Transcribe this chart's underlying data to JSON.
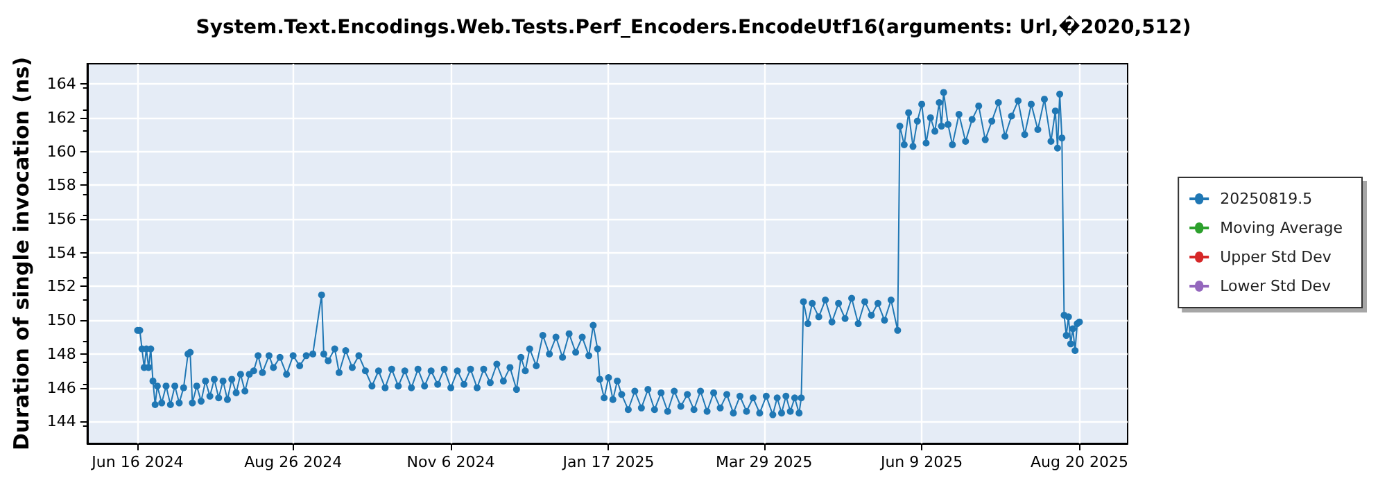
{
  "chart_data": {
    "type": "line",
    "title": "System.Text.Encodings.Web.Tests.Perf_Encoders.EncodeUtf16(arguments: Url,�2020,512)",
    "ylabel": "Duration of single invocation (ns)",
    "x": [
      "2024-06-16",
      "2024-06-17",
      "2024-06-18",
      "2024-06-19",
      "2024-06-20",
      "2024-06-21",
      "2024-06-22",
      "2024-06-23",
      "2024-06-24",
      "2024-06-25",
      "2024-06-27",
      "2024-06-29",
      "2024-07-01",
      "2024-07-03",
      "2024-07-05",
      "2024-07-07",
      "2024-07-09",
      "2024-07-10",
      "2024-07-11",
      "2024-07-13",
      "2024-07-15",
      "2024-07-17",
      "2024-07-19",
      "2024-07-21",
      "2024-07-23",
      "2024-07-25",
      "2024-07-27",
      "2024-07-29",
      "2024-07-31",
      "2024-08-02",
      "2024-08-04",
      "2024-08-06",
      "2024-08-08",
      "2024-08-10",
      "2024-08-12",
      "2024-08-15",
      "2024-08-17",
      "2024-08-20",
      "2024-08-23",
      "2024-08-26",
      "2024-08-29",
      "2024-09-01",
      "2024-09-04",
      "2024-09-08",
      "2024-09-09",
      "2024-09-11",
      "2024-09-14",
      "2024-09-16",
      "2024-09-19",
      "2024-09-22",
      "2024-09-25",
      "2024-09-28",
      "2024-10-01",
      "2024-10-04",
      "2024-10-07",
      "2024-10-10",
      "2024-10-13",
      "2024-10-16",
      "2024-10-19",
      "2024-10-22",
      "2024-10-25",
      "2024-10-28",
      "2024-10-31",
      "2024-11-03",
      "2024-11-06",
      "2024-11-09",
      "2024-11-12",
      "2024-11-15",
      "2024-11-18",
      "2024-11-21",
      "2024-11-24",
      "2024-11-27",
      "2024-11-30",
      "2024-12-03",
      "2024-12-06",
      "2024-12-08",
      "2024-12-10",
      "2024-12-12",
      "2024-12-15",
      "2024-12-18",
      "2024-12-21",
      "2024-12-24",
      "2024-12-27",
      "2024-12-30",
      "2025-01-02",
      "2025-01-05",
      "2025-01-08",
      "2025-01-10",
      "2025-01-12",
      "2025-01-13",
      "2025-01-15",
      "2025-01-17",
      "2025-01-19",
      "2025-01-21",
      "2025-01-23",
      "2025-01-26",
      "2025-01-29",
      "2025-02-01",
      "2025-02-04",
      "2025-02-07",
      "2025-02-10",
      "2025-02-13",
      "2025-02-16",
      "2025-02-19",
      "2025-02-22",
      "2025-02-25",
      "2025-02-28",
      "2025-03-03",
      "2025-03-06",
      "2025-03-09",
      "2025-03-12",
      "2025-03-15",
      "2025-03-18",
      "2025-03-21",
      "2025-03-24",
      "2025-03-27",
      "2025-03-30",
      "2025-04-02",
      "2025-04-04",
      "2025-04-06",
      "2025-04-08",
      "2025-04-10",
      "2025-04-12",
      "2025-04-14",
      "2025-04-15",
      "2025-04-16",
      "2025-04-18",
      "2025-04-20",
      "2025-04-23",
      "2025-04-26",
      "2025-04-29",
      "2025-05-02",
      "2025-05-05",
      "2025-05-08",
      "2025-05-11",
      "2025-05-14",
      "2025-05-17",
      "2025-05-20",
      "2025-05-23",
      "2025-05-26",
      "2025-05-29",
      "2025-05-30",
      "2025-06-01",
      "2025-06-03",
      "2025-06-05",
      "2025-06-07",
      "2025-06-09",
      "2025-06-11",
      "2025-06-13",
      "2025-06-15",
      "2025-06-17",
      "2025-06-18",
      "2025-06-19",
      "2025-06-21",
      "2025-06-23",
      "2025-06-26",
      "2025-06-29",
      "2025-07-02",
      "2025-07-05",
      "2025-07-08",
      "2025-07-11",
      "2025-07-14",
      "2025-07-17",
      "2025-07-20",
      "2025-07-23",
      "2025-07-26",
      "2025-07-29",
      "2025-08-01",
      "2025-08-04",
      "2025-08-07",
      "2025-08-09",
      "2025-08-10",
      "2025-08-11",
      "2025-08-12",
      "2025-08-13",
      "2025-08-14",
      "2025-08-15",
      "2025-08-16",
      "2025-08-17",
      "2025-08-18",
      "2025-08-19",
      "2025-08-20"
    ],
    "series": [
      {
        "name": "20250819.5",
        "color": "#1f77b4",
        "values": [
          149.4,
          149.4,
          148.3,
          147.2,
          148.3,
          147.2,
          148.3,
          146.4,
          145.0,
          146.1,
          145.1,
          146.1,
          145.0,
          146.1,
          145.1,
          146.0,
          148.0,
          148.1,
          145.1,
          146.1,
          145.2,
          146.4,
          145.5,
          146.5,
          145.4,
          146.4,
          145.3,
          146.5,
          145.7,
          146.8,
          145.8,
          146.8,
          147.0,
          147.9,
          146.9,
          147.9,
          147.2,
          147.8,
          146.8,
          147.9,
          147.3,
          147.9,
          148.0,
          151.5,
          148.0,
          147.6,
          148.3,
          146.9,
          148.2,
          147.2,
          147.9,
          147.0,
          146.1,
          147.0,
          146.0,
          147.1,
          146.1,
          147.0,
          146.0,
          147.1,
          146.1,
          147.0,
          146.2,
          147.1,
          146.0,
          147.0,
          146.2,
          147.1,
          146.0,
          147.1,
          146.3,
          147.4,
          146.4,
          147.2,
          145.9,
          147.8,
          147.0,
          148.3,
          147.3,
          149.1,
          148.0,
          149.0,
          147.8,
          149.2,
          148.1,
          149.0,
          147.9,
          149.7,
          148.3,
          146.5,
          145.4,
          146.6,
          145.3,
          146.4,
          145.6,
          144.7,
          145.8,
          144.8,
          145.9,
          144.7,
          145.7,
          144.6,
          145.8,
          144.9,
          145.6,
          144.7,
          145.8,
          144.6,
          145.7,
          144.8,
          145.6,
          144.5,
          145.5,
          144.6,
          145.4,
          144.5,
          145.5,
          144.4,
          145.4,
          144.5,
          145.5,
          144.6,
          145.4,
          144.5,
          145.4,
          151.1,
          149.8,
          151.0,
          150.2,
          151.2,
          149.9,
          151.0,
          150.1,
          151.3,
          149.8,
          151.1,
          150.3,
          151.0,
          150.0,
          151.2,
          149.4,
          161.5,
          160.4,
          162.3,
          160.3,
          161.8,
          162.8,
          160.5,
          162.0,
          161.2,
          162.9,
          161.5,
          163.5,
          161.6,
          160.4,
          162.2,
          160.6,
          161.9,
          162.7,
          160.7,
          161.8,
          162.9,
          160.9,
          162.1,
          163.0,
          161.0,
          162.8,
          161.3,
          163.1,
          160.6,
          162.4,
          160.2,
          163.4,
          160.8,
          150.3,
          149.1,
          150.2,
          148.6,
          149.5,
          148.2,
          149.8,
          149.9
        ]
      },
      {
        "name": "Moving Average",
        "color": "#2ca02c",
        "values": [
          null,
          null,
          null,
          null,
          null,
          null,
          null,
          null,
          null,
          null,
          null,
          null,
          null,
          null,
          null,
          null,
          null,
          null,
          null,
          null,
          null,
          null,
          null,
          null,
          null,
          null,
          null,
          null,
          null,
          null,
          null,
          null,
          null,
          null,
          null,
          null,
          null,
          null,
          null,
          null,
          null,
          null,
          null,
          null,
          null,
          null,
          null,
          null,
          null,
          null,
          null,
          null,
          null,
          null,
          null,
          null,
          null,
          null,
          null,
          null,
          null,
          null,
          null,
          null,
          null,
          null,
          null,
          null,
          null,
          null,
          null,
          null,
          null,
          null,
          null,
          null,
          null,
          null,
          null,
          null,
          null,
          null,
          null,
          null,
          null,
          null,
          null,
          null,
          null,
          null,
          null,
          null,
          null,
          null,
          null,
          null,
          null,
          null,
          null,
          null,
          null,
          null,
          null,
          null,
          null,
          null,
          null,
          null,
          null,
          null,
          null,
          null,
          null,
          null,
          null,
          null,
          null,
          null,
          null,
          null,
          null,
          null,
          null,
          null,
          null,
          null,
          null,
          null,
          null,
          null,
          null,
          null,
          null,
          null,
          null,
          null,
          null,
          null,
          null,
          null,
          null,
          null,
          null,
          null,
          null,
          null,
          null,
          null,
          null,
          null,
          null,
          null,
          null,
          null,
          null,
          null,
          null,
          null,
          null,
          null,
          null,
          null,
          null,
          null,
          null,
          null,
          null,
          null,
          null,
          null,
          null,
          null,
          null,
          null,
          null,
          null,
          null,
          null,
          null,
          null,
          null,
          null
        ]
      },
      {
        "name": "Upper Std Dev",
        "color": "#d62728",
        "values": [
          null,
          null,
          null,
          null,
          null,
          null,
          null,
          null,
          null,
          null,
          null,
          null,
          null,
          null,
          null,
          null,
          null,
          null,
          null,
          null,
          null,
          null,
          null,
          null,
          null,
          null,
          null,
          null,
          null,
          null,
          null,
          null,
          null,
          null,
          null,
          null,
          null,
          null,
          null,
          null,
          null,
          null,
          null,
          null,
          null,
          null,
          null,
          null,
          null,
          null,
          null,
          null,
          null,
          null,
          null,
          null,
          null,
          null,
          null,
          null,
          null,
          null,
          null,
          null,
          null,
          null,
          null,
          null,
          null,
          null,
          null,
          null,
          null,
          null,
          null,
          null,
          null,
          null,
          null,
          null,
          null,
          null,
          null,
          null,
          null,
          null,
          null,
          null,
          null,
          null,
          null,
          null,
          null,
          null,
          null,
          null,
          null,
          null,
          null,
          null,
          null,
          null,
          null,
          null,
          null,
          null,
          null,
          null,
          null,
          null,
          null,
          null,
          null,
          null,
          null,
          null,
          null,
          null,
          null,
          null,
          null,
          null,
          null,
          null,
          null,
          null,
          null,
          null,
          null,
          null,
          null,
          null,
          null,
          null,
          null,
          null,
          null,
          null,
          null,
          null,
          null,
          null,
          null,
          null,
          null,
          null,
          null,
          null,
          null,
          null,
          null,
          null,
          null,
          null,
          null,
          null,
          null,
          null,
          null,
          null,
          null,
          null,
          null,
          null,
          null,
          null,
          null,
          null,
          null,
          null,
          null,
          null,
          null,
          null,
          null,
          null,
          null,
          null,
          null,
          null,
          null,
          null
        ]
      },
      {
        "name": "Lower Std Dev",
        "color": "#9467bd",
        "values": [
          null,
          null,
          null,
          null,
          null,
          null,
          null,
          null,
          null,
          null,
          null,
          null,
          null,
          null,
          null,
          null,
          null,
          null,
          null,
          null,
          null,
          null,
          null,
          null,
          null,
          null,
          null,
          null,
          null,
          null,
          null,
          null,
          null,
          null,
          null,
          null,
          null,
          null,
          null,
          null,
          null,
          null,
          null,
          null,
          null,
          null,
          null,
          null,
          null,
          null,
          null,
          null,
          null,
          null,
          null,
          null,
          null,
          null,
          null,
          null,
          null,
          null,
          null,
          null,
          null,
          null,
          null,
          null,
          null,
          null,
          null,
          null,
          null,
          null,
          null,
          null,
          null,
          null,
          null,
          null,
          null,
          null,
          null,
          null,
          null,
          null,
          null,
          null,
          null,
          null,
          null,
          null,
          null,
          null,
          null,
          null,
          null,
          null,
          null,
          null,
          null,
          null,
          null,
          null,
          null,
          null,
          null,
          null,
          null,
          null,
          null,
          null,
          null,
          null,
          null,
          null,
          null,
          null,
          null,
          null,
          null,
          null,
          null,
          null,
          null,
          null,
          null,
          null,
          null,
          null,
          null,
          null,
          null,
          null,
          null,
          null,
          null,
          null,
          null,
          null,
          null,
          null,
          null,
          null,
          null,
          null,
          null,
          null,
          null,
          null,
          null,
          null,
          null,
          null,
          null,
          null,
          null,
          null,
          null,
          null,
          null,
          null,
          null,
          null,
          null,
          null,
          null,
          null,
          null,
          null,
          null,
          null,
          null,
          null,
          null,
          null,
          null,
          null,
          null,
          null,
          null,
          null
        ]
      }
    ],
    "xlim": [
      "2024-05-24",
      "2025-09-11"
    ],
    "xticks": [
      {
        "value": "2024-06-16",
        "label": "Jun 16 2024"
      },
      {
        "value": "2024-08-26",
        "label": "Aug 26 2024"
      },
      {
        "value": "2024-11-06",
        "label": "Nov 6 2024"
      },
      {
        "value": "2025-01-17",
        "label": "Jan 17 2025"
      },
      {
        "value": "2025-03-29",
        "label": "Mar 29 2025"
      },
      {
        "value": "2025-06-09",
        "label": "Jun 9 2025"
      },
      {
        "value": "2025-08-20",
        "label": "Aug 20 2025"
      }
    ],
    "ylim": [
      142.7,
      165.2
    ],
    "yticks": [
      144,
      146,
      148,
      150,
      152,
      154,
      156,
      158,
      160,
      162,
      164
    ],
    "grid": true,
    "legend": "right",
    "marker": "circle",
    "line_style": "solid"
  }
}
